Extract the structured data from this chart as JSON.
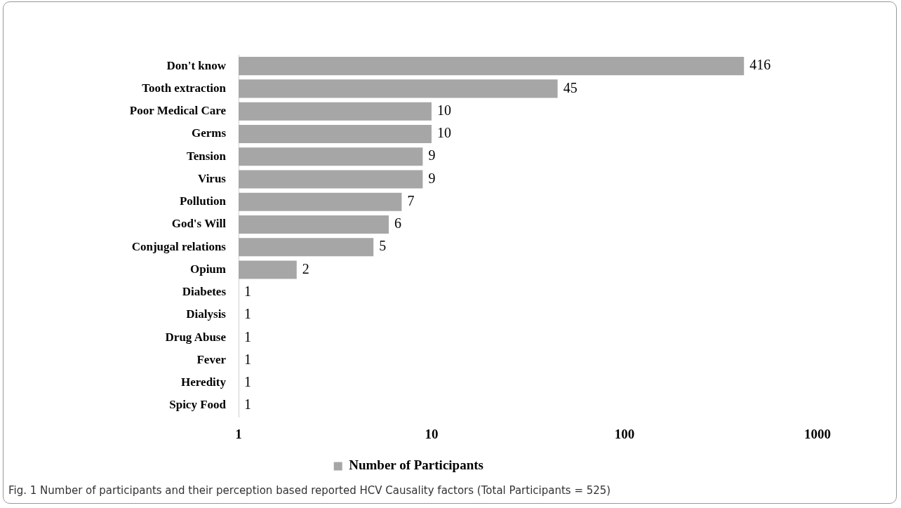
{
  "chart_data": {
    "type": "bar",
    "orientation": "horizontal",
    "log": "x",
    "categories": [
      "Don't know",
      "Tooth extraction",
      "Poor Medical Care",
      "Germs",
      "Tension",
      "Virus",
      "Pollution",
      "God's Will",
      "Conjugal relations",
      "Opium",
      "Diabetes",
      "Dialysis",
      "Drug Abuse",
      "Fever",
      "Heredity",
      "Spicy Food"
    ],
    "series": [
      {
        "name": "Number of Participants",
        "color": "#a6a6a6",
        "values": [
          416,
          45,
          10,
          10,
          9,
          9,
          7,
          6,
          5,
          2,
          1,
          1,
          1,
          1,
          1,
          1
        ]
      }
    ],
    "xlim": [
      1,
      1000
    ],
    "xticks": [
      1,
      10,
      100,
      1000
    ],
    "data_labels": true,
    "grid": false,
    "legend": "bottom",
    "annotations": [
      "Fig. 1 Number of participants and their perception based reported HCV Causality factors (Total Participants = 525)"
    ]
  }
}
